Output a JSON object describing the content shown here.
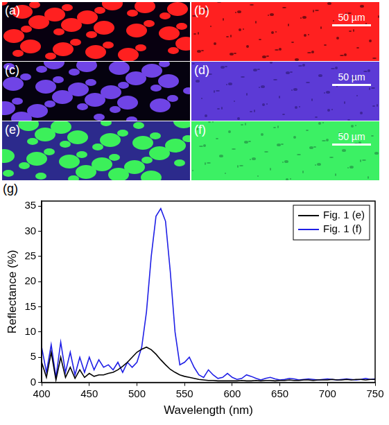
{
  "panels": [
    {
      "label": "(a)",
      "color": "#ff2020",
      "background": "#080010"
    },
    {
      "label": "(b)",
      "color": "#ff2020",
      "background": "#200008",
      "scale_bar": "50 µm"
    },
    {
      "label": "(c)",
      "color": "#7044e6",
      "background": "#05020f"
    },
    {
      "label": "(d)",
      "color": "#5c3ad6",
      "background": "#2a1870",
      "scale_bar": "50 µm"
    },
    {
      "label": "(e)",
      "color": "#3cf05a",
      "background": "#2c2a8c"
    },
    {
      "label": "(f)",
      "color": "#3cf064",
      "background": "#1f8040",
      "scale_bar": "50 µm"
    }
  ],
  "chart_data": {
    "type": "line",
    "panel_label": "(g)",
    "x_label": "Wavelength (nm)",
    "y_label": "Reflectance (%)",
    "x": [
      400,
      405,
      410,
      415,
      420,
      425,
      430,
      435,
      440,
      445,
      450,
      455,
      460,
      465,
      470,
      475,
      480,
      485,
      490,
      495,
      500,
      505,
      510,
      515,
      520,
      525,
      530,
      535,
      540,
      545,
      550,
      555,
      560,
      565,
      570,
      575,
      580,
      585,
      590,
      595,
      600,
      605,
      610,
      615,
      620,
      625,
      630,
      635,
      640,
      645,
      650,
      655,
      660,
      665,
      670,
      675,
      680,
      685,
      690,
      695,
      700,
      705,
      710,
      715,
      720,
      725,
      730,
      735,
      740,
      745,
      750
    ],
    "series": [
      {
        "name": "Fig. 1 (e)",
        "color": "#000000",
        "values": [
          4,
          1,
          6,
          0.5,
          5,
          1,
          3,
          0.8,
          2.5,
          1,
          1.8,
          1.2,
          1.5,
          1.5,
          1.8,
          2,
          2.5,
          3.2,
          4,
          5,
          6,
          6.6,
          7,
          6.5,
          5.6,
          4.5,
          3.5,
          2.6,
          2,
          1.5,
          1.2,
          1,
          0.8,
          0.6,
          0.5,
          0.4,
          0.4,
          0.3,
          0.3,
          0.3,
          0.3,
          0.3,
          0.4,
          0.3,
          0.3,
          0.4,
          0.3,
          0.4,
          0.4,
          0.3,
          0.4,
          0.4,
          0.5,
          0.4,
          0.4,
          0.5,
          0.5,
          0.4,
          0.5,
          0.5,
          0.5,
          0.6,
          0.5,
          0.5,
          0.6,
          0.5,
          0.6,
          0.6,
          0.5,
          0.6,
          0.6
        ]
      },
      {
        "name": "Fig. 1 (f)",
        "color": "#1f1fe6",
        "values": [
          7,
          2,
          7.5,
          1,
          8,
          2,
          6,
          1.5,
          5,
          2,
          5,
          2.5,
          4.5,
          3,
          3.5,
          2.5,
          4,
          2,
          4,
          3,
          4,
          7,
          14,
          25,
          33,
          34.5,
          32,
          22,
          10,
          3.5,
          4,
          5,
          3,
          1.5,
          1,
          2.5,
          1.5,
          0.8,
          1,
          1.8,
          1,
          0.6,
          0.8,
          1.5,
          1.2,
          0.8,
          0.5,
          0.8,
          1,
          0.7,
          0.5,
          0.6,
          0.8,
          0.7,
          0.5,
          0.6,
          0.7,
          0.6,
          0.5,
          0.6,
          0.7,
          0.6,
          0.5,
          0.6,
          0.7,
          0.6,
          0.5,
          0.6,
          0.8,
          0.6,
          0.7
        ]
      }
    ],
    "xlim": [
      400,
      750
    ],
    "xticks": [
      400,
      450,
      500,
      550,
      600,
      650,
      700,
      750
    ],
    "ylim": [
      0,
      36
    ],
    "yticks": [
      0,
      5,
      10,
      15,
      20,
      25,
      30,
      35
    ],
    "grid": false,
    "legend": "upper right"
  }
}
